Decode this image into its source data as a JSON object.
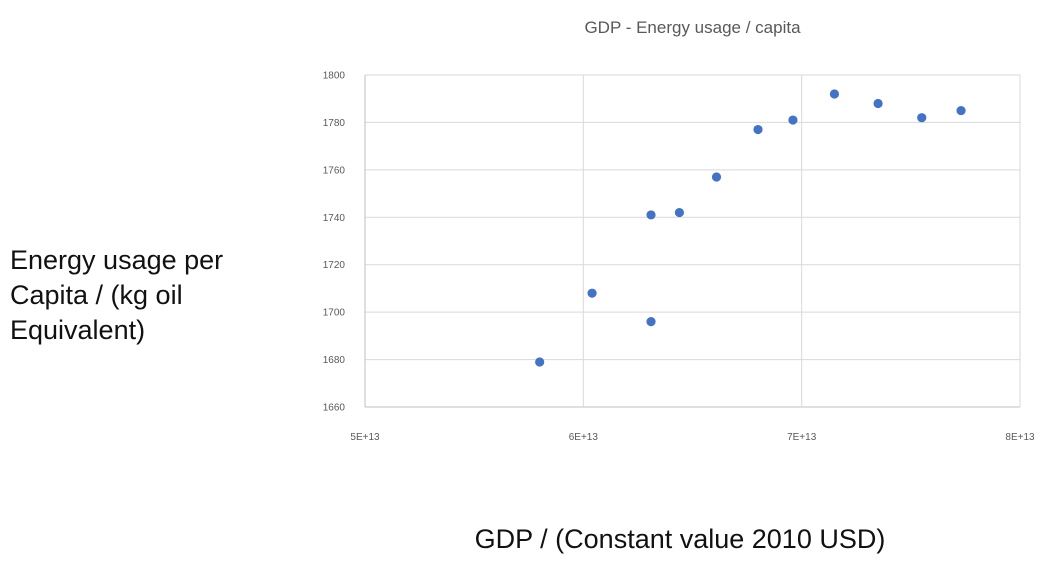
{
  "chart_data": {
    "type": "scatter",
    "title": "GDP - Energy usage / capita",
    "xlabel": "GDP / (Constant value 2010 USD)",
    "ylabel": "Energy usage per Capita / (kg oil Equivalent)",
    "xlim": [
      50000000000000,
      80000000000000
    ],
    "ylim": [
      1660,
      1800
    ],
    "x_tick_labels": [
      "5E+13",
      "6E+13",
      "7E+13",
      "8E+13"
    ],
    "y_tick_labels": [
      "1660",
      "1680",
      "1700",
      "1720",
      "1740",
      "1760",
      "1780",
      "1800"
    ],
    "grid": true,
    "legend": "none",
    "marker_color": "#4472c4",
    "points": [
      {
        "x": 58000000000000,
        "y": 1679
      },
      {
        "x": 60400000000000,
        "y": 1708
      },
      {
        "x": 63100000000000,
        "y": 1741
      },
      {
        "x": 63100000000000,
        "y": 1696
      },
      {
        "x": 64400000000000,
        "y": 1742
      },
      {
        "x": 66100000000000,
        "y": 1757
      },
      {
        "x": 68000000000000,
        "y": 1777
      },
      {
        "x": 69600000000000,
        "y": 1781
      },
      {
        "x": 71500000000000,
        "y": 1792
      },
      {
        "x": 73500000000000,
        "y": 1788
      },
      {
        "x": 75500000000000,
        "y": 1782
      },
      {
        "x": 77300000000000,
        "y": 1785
      }
    ]
  }
}
